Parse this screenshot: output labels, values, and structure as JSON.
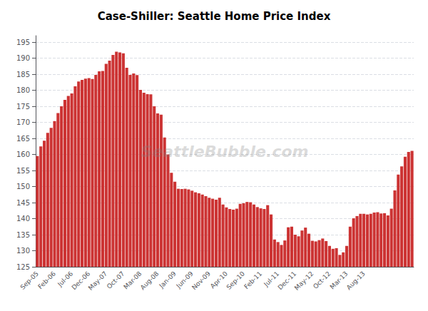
{
  "chart_data": {
    "type": "bar",
    "title": "Case-Shiller: Seattle Home Price Index",
    "annotation": "SeattleBubble.com",
    "categories": [
      "Sep-05",
      null,
      null,
      null,
      null,
      "Feb-06",
      null,
      null,
      null,
      null,
      "Jul-06",
      null,
      null,
      null,
      null,
      "Dec-06",
      null,
      null,
      null,
      null,
      "May-07",
      null,
      null,
      null,
      null,
      "Oct-07",
      null,
      null,
      null,
      null,
      "Mar-08",
      null,
      null,
      null,
      null,
      "Aug-08",
      null,
      null,
      null,
      null,
      "Jan-09",
      null,
      null,
      null,
      null,
      "Jun-09",
      null,
      null,
      null,
      null,
      "Nov-09",
      null,
      null,
      null,
      null,
      "Apr-10",
      null,
      null,
      null,
      null,
      "Sep-10",
      null,
      null,
      null,
      null,
      "Feb-11",
      null,
      null,
      null,
      null,
      "Jul-11",
      null,
      null,
      null,
      null,
      "Dec-11",
      null,
      null,
      null,
      null,
      "May-12",
      null,
      null,
      null,
      null,
      "Oct-12",
      null,
      null,
      null,
      null,
      "Mar-13",
      null,
      null,
      null,
      null,
      "Aug-13",
      null,
      null,
      null,
      null,
      null,
      null,
      null,
      null,
      null,
      null,
      null,
      null,
      null,
      null
    ],
    "values": [
      159.5,
      162.5,
      164.3,
      166.7,
      168.3,
      170.4,
      172.9,
      175.0,
      177.0,
      178.2,
      179.0,
      181.2,
      182.7,
      183.2,
      183.6,
      183.8,
      183.5,
      184.8,
      185.9,
      186.0,
      188.2,
      189.2,
      191.0,
      192.0,
      191.8,
      191.5,
      187.0,
      184.8,
      185.2,
      184.7,
      180.1,
      179.2,
      178.8,
      178.7,
      175.0,
      172.8,
      172.4,
      165.3,
      160.0,
      154.3,
      151.5,
      149.3,
      149.2,
      149.3,
      149.1,
      148.7,
      148.2,
      147.9,
      147.5,
      147.0,
      146.5,
      146.2,
      145.9,
      146.5,
      144.4,
      143.5,
      143.0,
      142.8,
      143.1,
      144.6,
      144.8,
      145.2,
      145.1,
      144.4,
      143.6,
      143.2,
      143.0,
      144.2,
      141.3,
      133.5,
      132.7,
      131.8,
      133.2,
      137.3,
      137.5,
      135.0,
      134.5,
      136.3,
      137.2,
      135.3,
      133.1,
      132.9,
      133.3,
      133.8,
      133.0,
      131.5,
      130.6,
      130.8,
      128.7,
      129.5,
      131.5,
      137.5,
      140.1,
      140.8,
      141.5,
      141.5,
      141.3,
      141.5,
      141.9,
      142.0,
      141.6,
      141.7,
      141.0,
      143.1,
      148.8,
      153.7,
      156.3,
      159.3,
      160.8,
      161.1
    ],
    "color": "#cc3333",
    "ylim": [
      125,
      197
    ],
    "yticks": [
      125,
      130,
      135,
      140,
      145,
      150,
      155,
      160,
      165,
      170,
      175,
      180,
      185,
      190,
      195
    ],
    "grid": true
  }
}
